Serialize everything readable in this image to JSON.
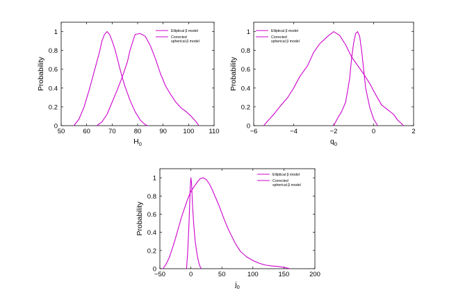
{
  "chart_data": [
    {
      "type": "line",
      "xlabel_main": "H",
      "xlabel_sub": "0",
      "ylabel": "Probability",
      "xlim": [
        50,
        110
      ],
      "ylim": [
        0,
        1.1
      ],
      "xticks": [
        50,
        60,
        70,
        80,
        90,
        100,
        110
      ],
      "xtick_labels": [
        "50",
        "60",
        "70",
        "80",
        "90",
        "100",
        "110"
      ],
      "yticks": [
        0,
        0.2,
        0.4,
        0.6,
        0.8,
        1
      ],
      "ytick_labels": [
        "0",
        "0.2",
        "0.4",
        "0.6",
        "0.8",
        "1"
      ],
      "legend_position": "top-right",
      "legend": [
        {
          "lines": [
            "Elliptical β model"
          ]
        },
        {
          "lines": [
            "Corrected",
            "spherical β model"
          ]
        }
      ],
      "series": [
        {
          "color": "#cc00cc",
          "x": [
            64,
            66,
            68,
            70,
            72,
            74,
            76,
            77,
            79,
            81,
            83,
            85,
            87,
            89,
            91,
            93,
            95,
            97,
            99,
            101,
            103,
            104
          ],
          "y": [
            0,
            0.04,
            0.12,
            0.25,
            0.38,
            0.52,
            0.68,
            0.8,
            0.97,
            0.98,
            0.95,
            0.85,
            0.71,
            0.55,
            0.42,
            0.33,
            0.25,
            0.19,
            0.15,
            0.1,
            0.04,
            0
          ]
        },
        {
          "color": "#cc00cc",
          "x": [
            55,
            57,
            59,
            61,
            63,
            65,
            66,
            67,
            68,
            69,
            70,
            71,
            72,
            73,
            74,
            75,
            77,
            79,
            81,
            83,
            84
          ],
          "y": [
            0,
            0.07,
            0.2,
            0.38,
            0.58,
            0.78,
            0.9,
            0.97,
            1.0,
            0.97,
            0.9,
            0.82,
            0.72,
            0.61,
            0.51,
            0.42,
            0.27,
            0.15,
            0.06,
            0.01,
            0
          ]
        }
      ]
    },
    {
      "type": "line",
      "xlabel_main": "q",
      "xlabel_sub": "0",
      "ylabel": "Probability",
      "xlim": [
        -6,
        2
      ],
      "ylim": [
        0,
        1.1
      ],
      "xticks": [
        -6,
        -4,
        -2,
        0,
        2
      ],
      "xtick_labels": [
        "−6",
        "−4",
        "−2",
        "0",
        "2"
      ],
      "yticks": [
        0,
        0.2,
        0.4,
        0.6,
        0.8,
        1
      ],
      "ytick_labels": [
        "0",
        "0.2",
        "0.4",
        "0.6",
        "0.8",
        "1"
      ],
      "legend_position": "top-left",
      "legend": [
        {
          "lines": [
            "Elliptical β model"
          ]
        },
        {
          "lines": [
            "Corrected",
            "spherical β model"
          ]
        }
      ],
      "series": [
        {
          "color": "#cc00cc",
          "x": [
            -5.5,
            -5.3,
            -5.0,
            -4.7,
            -4.3,
            -4.0,
            -3.7,
            -3.3,
            -3.0,
            -2.7,
            -2.3,
            -2.0,
            -1.7,
            -1.4,
            -1.1,
            -0.8,
            -0.5,
            -0.2,
            0.1,
            0.4,
            0.7,
            1.0,
            1.2,
            1.5
          ],
          "y": [
            0,
            0.05,
            0.12,
            0.2,
            0.3,
            0.4,
            0.52,
            0.64,
            0.78,
            0.87,
            0.95,
            1.0,
            0.96,
            0.86,
            0.73,
            0.64,
            0.55,
            0.45,
            0.33,
            0.22,
            0.17,
            0.12,
            0.06,
            0
          ]
        },
        {
          "color": "#cc00cc",
          "x": [
            -2.0,
            -1.8,
            -1.6,
            -1.4,
            -1.2,
            -1.1,
            -1.0,
            -0.9,
            -0.8,
            -0.7,
            -0.6,
            -0.5,
            -0.4,
            -0.2,
            0.0,
            0.2
          ],
          "y": [
            0,
            0.08,
            0.15,
            0.25,
            0.5,
            0.72,
            0.88,
            0.98,
            1.0,
            0.95,
            0.8,
            0.6,
            0.4,
            0.2,
            0.07,
            0
          ]
        }
      ]
    },
    {
      "type": "line",
      "xlabel_main": "j",
      "xlabel_sub": "0",
      "ylabel": "Probability",
      "xlim": [
        -50,
        200
      ],
      "ylim": [
        0,
        1.1
      ],
      "xticks": [
        -50,
        0,
        50,
        100,
        150,
        200
      ],
      "xtick_labels": [
        "−50",
        "0",
        "50",
        "100",
        "150",
        "200"
      ],
      "yticks": [
        0,
        0.2,
        0.4,
        0.6,
        0.8,
        1
      ],
      "ytick_labels": [
        "0",
        "0.2",
        "0.4",
        "0.6",
        "0.8",
        "1"
      ],
      "legend_position": "top-right",
      "legend": [
        {
          "lines": [
            "Elliptical β model"
          ]
        },
        {
          "lines": [
            "Corrected",
            "spherical β model"
          ]
        }
      ],
      "series": [
        {
          "color": "#cc00cc",
          "x": [
            -45,
            -40,
            -35,
            -30,
            -25,
            -20,
            -15,
            -10,
            -5,
            0,
            5,
            10,
            15,
            20,
            25,
            30,
            35,
            40,
            45,
            50,
            55,
            60,
            65,
            70,
            75,
            80,
            90,
            100,
            110,
            120,
            130,
            140,
            150,
            160
          ],
          "y": [
            0,
            0.05,
            0.12,
            0.22,
            0.33,
            0.45,
            0.57,
            0.67,
            0.77,
            0.85,
            0.9,
            0.95,
            0.99,
            1.0,
            0.98,
            0.93,
            0.86,
            0.78,
            0.7,
            0.61,
            0.52,
            0.44,
            0.37,
            0.3,
            0.24,
            0.19,
            0.13,
            0.09,
            0.06,
            0.04,
            0.03,
            0.025,
            0.015,
            0
          ]
        },
        {
          "color": "#cc00cc",
          "x": [
            -7,
            -5,
            -3,
            -1,
            0,
            1,
            2,
            3,
            5,
            7,
            9,
            11,
            13,
            15,
            17
          ],
          "y": [
            0,
            0.2,
            0.5,
            0.9,
            1.0,
            0.95,
            0.8,
            0.65,
            0.45,
            0.3,
            0.2,
            0.12,
            0.06,
            0.02,
            0
          ]
        }
      ]
    }
  ]
}
